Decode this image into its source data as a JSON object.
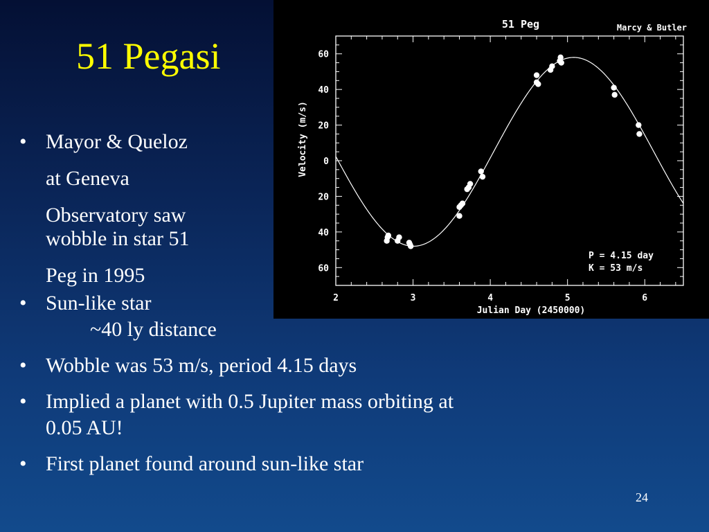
{
  "slide": {
    "title": "51 Pegasi",
    "page_number": "24",
    "bullets": [
      {
        "lines": [
          "Mayor & Queloz",
          "at Geneva",
          "Observatory saw",
          "wobble in star 51",
          "Peg in 1995"
        ]
      },
      {
        "lines": [
          "Sun-like star",
          "~40 ly distance"
        ]
      },
      {
        "lines": [
          "Wobble was 53 m/s, period 4.15 days"
        ]
      },
      {
        "lines": [
          "Implied a planet with 0.5 Jupiter mass orbiting at",
          "0.05 AU!"
        ]
      },
      {
        "lines": [
          "First planet found around sun-like star"
        ]
      }
    ]
  },
  "chart_data": {
    "type": "scatter",
    "title": "51 Peg",
    "credit": "Marcy & Butler",
    "xlabel": "Julian Day (2450000)",
    "ylabel": "Velocity (m/s)",
    "xlim": [
      2,
      6.5
    ],
    "ylim": [
      -70,
      70
    ],
    "xticks": [
      2,
      3,
      4,
      5,
      6
    ],
    "yticks": [
      60,
      40,
      20,
      0,
      -20,
      -40,
      -60
    ],
    "ytick_labels": [
      "60",
      "40",
      "20",
      "0",
      "20",
      "40",
      "60"
    ],
    "annotations": [
      "P = 4.15 day",
      "K = 53 m/s"
    ],
    "fit": {
      "period": 4.15,
      "amplitude": 53,
      "phase_peak_x": 5.08,
      "offset": 5
    },
    "points": [
      {
        "x": 2.66,
        "y": -45
      },
      {
        "x": 2.67,
        "y": -43
      },
      {
        "x": 2.68,
        "y": -42
      },
      {
        "x": 2.8,
        "y": -45
      },
      {
        "x": 2.82,
        "y": -43
      },
      {
        "x": 2.95,
        "y": -46
      },
      {
        "x": 2.96,
        "y": -47
      },
      {
        "x": 2.97,
        "y": -48
      },
      {
        "x": 3.6,
        "y": -31
      },
      {
        "x": 3.6,
        "y": -26
      },
      {
        "x": 3.62,
        "y": -25
      },
      {
        "x": 3.64,
        "y": -24
      },
      {
        "x": 3.7,
        "y": -16
      },
      {
        "x": 3.72,
        "y": -15
      },
      {
        "x": 3.74,
        "y": -13
      },
      {
        "x": 3.88,
        "y": -6
      },
      {
        "x": 3.9,
        "y": -9
      },
      {
        "x": 4.6,
        "y": 48
      },
      {
        "x": 4.6,
        "y": 44
      },
      {
        "x": 4.62,
        "y": 43
      },
      {
        "x": 4.78,
        "y": 51
      },
      {
        "x": 4.8,
        "y": 53
      },
      {
        "x": 4.9,
        "y": 56
      },
      {
        "x": 4.91,
        "y": 58
      },
      {
        "x": 4.92,
        "y": 55
      },
      {
        "x": 5.6,
        "y": 41
      },
      {
        "x": 5.61,
        "y": 37
      },
      {
        "x": 5.92,
        "y": 20
      },
      {
        "x": 5.93,
        "y": 15
      }
    ]
  }
}
